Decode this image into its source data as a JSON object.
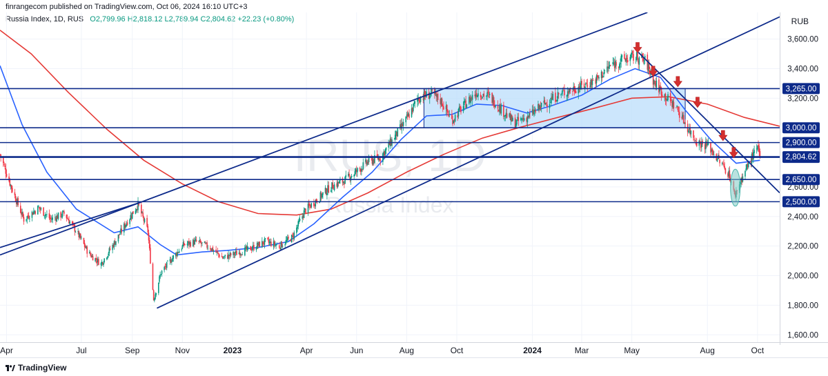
{
  "header": {
    "publisher_line": "finrangecom published on TradingView.com, Oct 06, 2024 16:10 UTC+3",
    "symbol_line": "Russia Index, 1D, RUS",
    "ohlc_line": "O2,799.96  H2,818.12  L2,789.94  C2,804.62  +22.23 (+0.80%)",
    "currency": "RUB"
  },
  "footer": {
    "brand": "TradingView"
  },
  "watermark": {
    "symbol": "IRUS, 1D",
    "name": "Russia Index"
  },
  "colors": {
    "up": "#089981",
    "down": "#f23645",
    "ma_fast": "#2962ff",
    "ma_slow": "#e53935",
    "lines": "#0d2a8a",
    "zone": "#bbdefb",
    "arrow": "#d32f2f",
    "ellipse": "#80cbc4"
  },
  "chart_data": {
    "type": "candlestick",
    "title": "Russia Index",
    "xlabel": "",
    "ylabel": "RUB",
    "ylim": [
      1550,
      3780
    ],
    "y_ticks": [
      1600,
      1800,
      2000,
      2200,
      2400,
      2600,
      2800,
      3000,
      3200,
      3400,
      3600
    ],
    "y_tick_labels": [
      "1,600.00",
      "1,800.00",
      "2,000.00",
      "2,200.00",
      "2,400.00",
      "2,600.00",
      "2,800.00",
      "3,000.00",
      "3,200.00",
      "3,400.00",
      "3,600.00"
    ],
    "x_ticks": [
      {
        "date": "2022-04-01",
        "label": "Apr"
      },
      {
        "date": "2022-07-01",
        "label": "Jul"
      },
      {
        "date": "2022-09-01",
        "label": "Sep"
      },
      {
        "date": "2022-11-01",
        "label": "Nov"
      },
      {
        "date": "2023-01-01",
        "label": "2023"
      },
      {
        "date": "2023-04-01",
        "label": "Apr"
      },
      {
        "date": "2023-06-01",
        "label": "Jun"
      },
      {
        "date": "2023-08-01",
        "label": "Aug"
      },
      {
        "date": "2023-10-01",
        "label": "Oct"
      },
      {
        "date": "2024-01-01",
        "label": "2024"
      },
      {
        "date": "2024-03-01",
        "label": "Mar"
      },
      {
        "date": "2024-05-01",
        "label": "May"
      },
      {
        "date": "2024-08-01",
        "label": "Aug"
      },
      {
        "date": "2024-10-01",
        "label": "Oct"
      }
    ],
    "x_range": [
      "2022-03-24",
      "2024-10-28"
    ],
    "price_path": [
      {
        "date": "2022-03-24",
        "close": 2820
      },
      {
        "date": "2022-04-08",
        "close": 2580
      },
      {
        "date": "2022-04-22",
        "close": 2380
      },
      {
        "date": "2022-05-10",
        "close": 2460
      },
      {
        "date": "2022-05-25",
        "close": 2380
      },
      {
        "date": "2022-06-10",
        "close": 2420
      },
      {
        "date": "2022-06-25",
        "close": 2300
      },
      {
        "date": "2022-07-10",
        "close": 2150
      },
      {
        "date": "2022-07-25",
        "close": 2080
      },
      {
        "date": "2022-08-10",
        "close": 2220
      },
      {
        "date": "2022-08-25",
        "close": 2360
      },
      {
        "date": "2022-09-08",
        "close": 2480
      },
      {
        "date": "2022-09-20",
        "close": 2300
      },
      {
        "date": "2022-09-27",
        "close": 1840
      },
      {
        "date": "2022-10-06",
        "close": 2020
      },
      {
        "date": "2022-10-20",
        "close": 2120
      },
      {
        "date": "2022-11-03",
        "close": 2210
      },
      {
        "date": "2022-11-18",
        "close": 2230
      },
      {
        "date": "2022-12-05",
        "close": 2190
      },
      {
        "date": "2022-12-20",
        "close": 2120
      },
      {
        "date": "2023-01-10",
        "close": 2160
      },
      {
        "date": "2023-01-26",
        "close": 2190
      },
      {
        "date": "2023-02-10",
        "close": 2230
      },
      {
        "date": "2023-02-27",
        "close": 2200
      },
      {
        "date": "2023-03-15",
        "close": 2260
      },
      {
        "date": "2023-03-30",
        "close": 2440
      },
      {
        "date": "2023-04-15",
        "close": 2520
      },
      {
        "date": "2023-04-30",
        "close": 2600
      },
      {
        "date": "2023-05-16",
        "close": 2640
      },
      {
        "date": "2023-05-31",
        "close": 2700
      },
      {
        "date": "2023-06-15",
        "close": 2770
      },
      {
        "date": "2023-06-30",
        "close": 2800
      },
      {
        "date": "2023-07-15",
        "close": 2920
      },
      {
        "date": "2023-07-31",
        "close": 3050
      },
      {
        "date": "2023-08-15",
        "close": 3200
      },
      {
        "date": "2023-08-31",
        "close": 3230
      },
      {
        "date": "2023-09-12",
        "close": 3180
      },
      {
        "date": "2023-09-25",
        "close": 3050
      },
      {
        "date": "2023-10-08",
        "close": 3140
      },
      {
        "date": "2023-10-25",
        "close": 3240
      },
      {
        "date": "2023-11-10",
        "close": 3210
      },
      {
        "date": "2023-11-25",
        "close": 3120
      },
      {
        "date": "2023-12-10",
        "close": 3030
      },
      {
        "date": "2023-12-28",
        "close": 3080
      },
      {
        "date": "2024-01-15",
        "close": 3160
      },
      {
        "date": "2024-02-01",
        "close": 3220
      },
      {
        "date": "2024-02-18",
        "close": 3260
      },
      {
        "date": "2024-03-05",
        "close": 3290
      },
      {
        "date": "2024-03-20",
        "close": 3330
      },
      {
        "date": "2024-04-05",
        "close": 3420
      },
      {
        "date": "2024-04-20",
        "close": 3460
      },
      {
        "date": "2024-05-05",
        "close": 3480
      },
      {
        "date": "2024-05-18",
        "close": 3450
      },
      {
        "date": "2024-05-28",
        "close": 3310
      },
      {
        "date": "2024-06-10",
        "close": 3220
      },
      {
        "date": "2024-06-25",
        "close": 3130
      },
      {
        "date": "2024-07-08",
        "close": 3000
      },
      {
        "date": "2024-07-20",
        "close": 2900
      },
      {
        "date": "2024-08-02",
        "close": 2880
      },
      {
        "date": "2024-08-15",
        "close": 2780
      },
      {
        "date": "2024-08-28",
        "close": 2680
      },
      {
        "date": "2024-09-03",
        "close": 2540
      },
      {
        "date": "2024-09-12",
        "close": 2660
      },
      {
        "date": "2024-09-22",
        "close": 2780
      },
      {
        "date": "2024-10-01",
        "close": 2860
      },
      {
        "date": "2024-10-04",
        "close": 2804.62
      }
    ],
    "ma_fast_path": [
      {
        "date": "2022-03-24",
        "value": 3420
      },
      {
        "date": "2022-04-20",
        "value": 3020
      },
      {
        "date": "2022-05-20",
        "value": 2700
      },
      {
        "date": "2022-06-25",
        "value": 2450
      },
      {
        "date": "2022-08-10",
        "value": 2290
      },
      {
        "date": "2022-09-08",
        "value": 2330
      },
      {
        "date": "2022-10-05",
        "value": 2210
      },
      {
        "date": "2022-10-25",
        "value": 2140
      },
      {
        "date": "2022-11-25",
        "value": 2160
      },
      {
        "date": "2022-12-25",
        "value": 2170
      },
      {
        "date": "2023-02-01",
        "value": 2190
      },
      {
        "date": "2023-03-10",
        "value": 2230
      },
      {
        "date": "2023-04-10",
        "value": 2350
      },
      {
        "date": "2023-05-15",
        "value": 2530
      },
      {
        "date": "2023-06-20",
        "value": 2700
      },
      {
        "date": "2023-07-25",
        "value": 2920
      },
      {
        "date": "2023-08-25",
        "value": 3080
      },
      {
        "date": "2023-09-25",
        "value": 3090
      },
      {
        "date": "2023-10-25",
        "value": 3160
      },
      {
        "date": "2023-11-25",
        "value": 3150
      },
      {
        "date": "2023-12-25",
        "value": 3100
      },
      {
        "date": "2024-01-25",
        "value": 3150
      },
      {
        "date": "2024-03-01",
        "value": 3220
      },
      {
        "date": "2024-04-05",
        "value": 3330
      },
      {
        "date": "2024-05-05",
        "value": 3400
      },
      {
        "date": "2024-06-05",
        "value": 3340
      },
      {
        "date": "2024-07-05",
        "value": 3120
      },
      {
        "date": "2024-08-05",
        "value": 2920
      },
      {
        "date": "2024-09-05",
        "value": 2760
      },
      {
        "date": "2024-10-04",
        "value": 2780
      }
    ],
    "ma_slow_path": [
      {
        "date": "2022-03-24",
        "value": 3660
      },
      {
        "date": "2022-05-01",
        "value": 3500
      },
      {
        "date": "2022-06-15",
        "value": 3240
      },
      {
        "date": "2022-08-01",
        "value": 2990
      },
      {
        "date": "2022-09-15",
        "value": 2780
      },
      {
        "date": "2022-11-01",
        "value": 2620
      },
      {
        "date": "2022-12-15",
        "value": 2500
      },
      {
        "date": "2023-02-01",
        "value": 2420
      },
      {
        "date": "2023-03-20",
        "value": 2410
      },
      {
        "date": "2023-05-01",
        "value": 2450
      },
      {
        "date": "2023-06-15",
        "value": 2560
      },
      {
        "date": "2023-08-01",
        "value": 2700
      },
      {
        "date": "2023-09-15",
        "value": 2820
      },
      {
        "date": "2023-11-01",
        "value": 2930
      },
      {
        "date": "2023-12-15",
        "value": 3000
      },
      {
        "date": "2024-02-01",
        "value": 3070
      },
      {
        "date": "2024-03-15",
        "value": 3130
      },
      {
        "date": "2024-05-01",
        "value": 3200
      },
      {
        "date": "2024-06-15",
        "value": 3210
      },
      {
        "date": "2024-08-01",
        "value": 3160
      },
      {
        "date": "2024-09-15",
        "value": 3070
      },
      {
        "date": "2024-10-28",
        "value": 3010
      }
    ],
    "horizontal_levels": [
      {
        "value": 3265,
        "label": "3,265.00"
      },
      {
        "value": 3000,
        "label": "3,000.00"
      },
      {
        "value": 2900,
        "label": "2,900.00"
      },
      {
        "value": 2800,
        "label": "2,800.00"
      },
      {
        "value": 2650,
        "label": "2,650.00"
      },
      {
        "value": 2500,
        "label": "2,500.00"
      }
    ],
    "last_price": {
      "value": 2804.62,
      "label": "2,804.62"
    },
    "zone": {
      "from": "2023-08-22",
      "to": "2024-07-05",
      "low": 3000,
      "high": 3265
    },
    "trend_lines": [
      {
        "from": {
          "date": "2022-03-24",
          "value": 2140
        },
        "to": {
          "date": "2024-05-20",
          "value": 3780
        }
      },
      {
        "from": {
          "date": "2022-10-01",
          "value": 1780
        },
        "to": {
          "date": "2024-10-28",
          "value": 3750
        }
      },
      {
        "from": {
          "date": "2022-03-24",
          "value": 2190
        },
        "to": {
          "date": "2022-09-08",
          "value": 2490
        }
      },
      {
        "from": {
          "date": "2024-05-09",
          "value": 3510
        },
        "to": {
          "date": "2024-10-28",
          "value": 2560
        }
      }
    ],
    "sell_arrows": [
      {
        "date": "2024-05-08",
        "value": 3535
      },
      {
        "date": "2024-05-27",
        "value": 3375
      },
      {
        "date": "2024-06-26",
        "value": 3305
      },
      {
        "date": "2024-07-20",
        "value": 3165
      },
      {
        "date": "2024-08-20",
        "value": 2940
      },
      {
        "date": "2024-09-02",
        "value": 2825
      }
    ],
    "highlight_ellipse": {
      "date": "2024-09-04",
      "value_low": 2470,
      "value_high": 2720
    }
  }
}
